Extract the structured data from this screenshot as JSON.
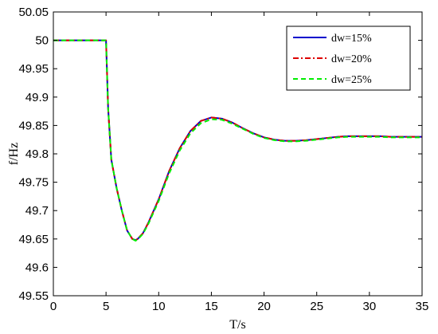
{
  "chart_data": {
    "type": "line",
    "xlabel": "T/s",
    "ylabel": "f/Hz",
    "xlim": [
      0,
      35
    ],
    "ylim": [
      49.55,
      50.05
    ],
    "xticks": [
      "0",
      "5",
      "10",
      "15",
      "20",
      "25",
      "30",
      "35"
    ],
    "yticks": [
      "49.55",
      "49.6",
      "49.65",
      "49.7",
      "49.75",
      "49.8",
      "49.85",
      "49.9",
      "49.95",
      "50",
      "50.05"
    ],
    "grid": false,
    "legend_position": "top-right",
    "series": [
      {
        "name": "dw=15%",
        "color": "#0000cc",
        "dash": "solid",
        "x": [
          0,
          5,
          5.2,
          5.5,
          6,
          6.5,
          7,
          7.5,
          7.8,
          8,
          8.5,
          9,
          10,
          11,
          12,
          13,
          14,
          15,
          16,
          17,
          18,
          19,
          20,
          21,
          22,
          23,
          24,
          25,
          26,
          27,
          28,
          29,
          30,
          31,
          32,
          33,
          34,
          35
        ],
        "y": [
          50.0,
          50.0,
          49.88,
          49.79,
          49.74,
          49.7,
          49.665,
          49.65,
          49.648,
          49.65,
          49.66,
          49.678,
          49.72,
          49.77,
          49.81,
          49.84,
          49.858,
          49.864,
          49.862,
          49.855,
          49.845,
          49.836,
          49.829,
          49.825,
          49.823,
          49.823,
          49.824,
          49.826,
          49.828,
          49.83,
          49.831,
          49.831,
          49.831,
          49.831,
          49.83,
          49.83,
          49.83,
          49.83
        ]
      },
      {
        "name": "dw=20%",
        "color": "#dd0000",
        "dash": "dashdot",
        "x": [
          0,
          5,
          5.2,
          5.5,
          6,
          6.5,
          7,
          7.5,
          7.8,
          8,
          8.5,
          9,
          10,
          11,
          12,
          13,
          14,
          15,
          16,
          17,
          18,
          19,
          20,
          21,
          22,
          23,
          24,
          25,
          26,
          27,
          28,
          29,
          30,
          31,
          32,
          33,
          34,
          35
        ],
        "y": [
          50.0,
          50.0,
          49.88,
          49.79,
          49.74,
          49.7,
          49.665,
          49.65,
          49.648,
          49.65,
          49.66,
          49.678,
          49.72,
          49.77,
          49.81,
          49.84,
          49.858,
          49.864,
          49.862,
          49.855,
          49.845,
          49.836,
          49.829,
          49.825,
          49.823,
          49.823,
          49.824,
          49.826,
          49.828,
          49.83,
          49.831,
          49.831,
          49.831,
          49.831,
          49.83,
          49.83,
          49.83,
          49.83
        ]
      },
      {
        "name": "dw=25%",
        "color": "#00ee00",
        "dash": "dashed",
        "x": [
          0,
          5,
          5.2,
          5.5,
          6,
          6.5,
          7,
          7.5,
          7.8,
          8,
          8.5,
          9,
          10,
          11,
          12,
          13,
          14,
          15,
          16,
          17,
          18,
          19,
          20,
          21,
          22,
          23,
          24,
          25,
          26,
          27,
          28,
          29,
          30,
          31,
          32,
          33,
          34,
          35
        ],
        "y": [
          50.0,
          50.0,
          49.88,
          49.79,
          49.74,
          49.7,
          49.665,
          49.65,
          49.647,
          49.649,
          49.659,
          49.676,
          49.717,
          49.766,
          49.806,
          49.836,
          49.854,
          49.861,
          49.86,
          49.853,
          49.844,
          49.835,
          49.828,
          49.824,
          49.822,
          49.822,
          49.823,
          49.825,
          49.827,
          49.829,
          49.83,
          49.83,
          49.83,
          49.83,
          49.829,
          49.829,
          49.829,
          49.829
        ]
      }
    ]
  }
}
